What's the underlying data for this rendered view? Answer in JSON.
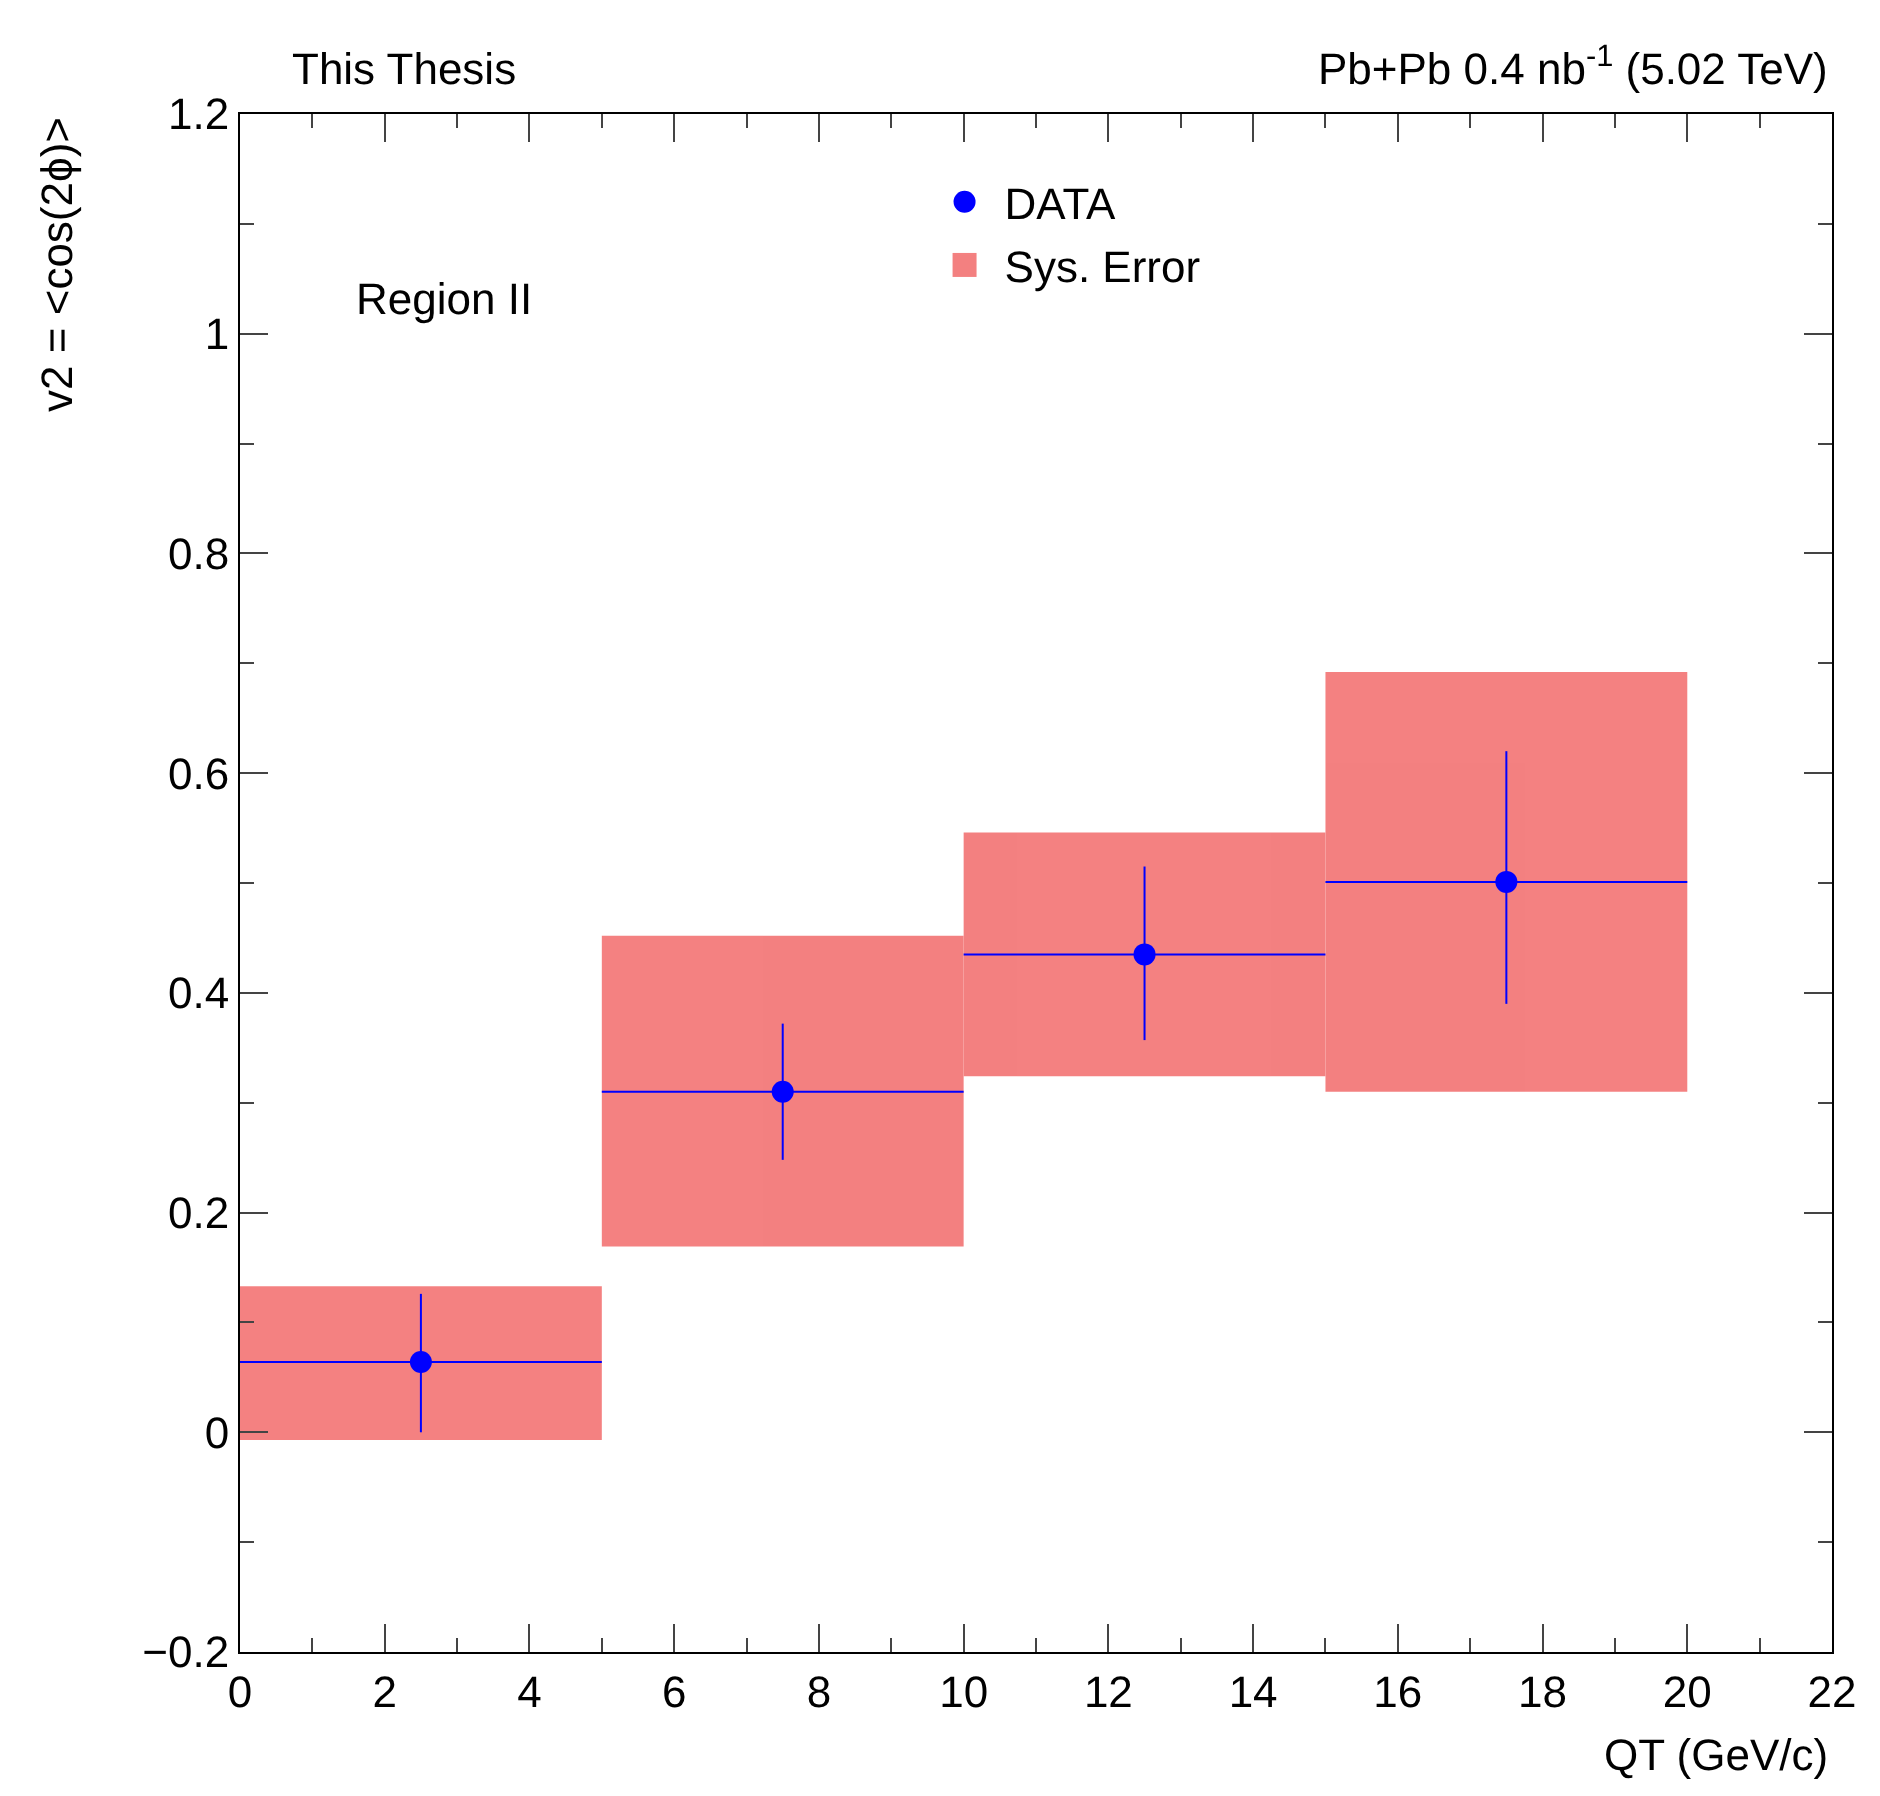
{
  "chart_data": {
    "type": "scatter",
    "xlabel": "QT (GeV/c)",
    "ylabel": "v2 = <cos(2ϕ)>",
    "annotations": [
      "This Thesis",
      "Pb+Pb 0.4 nb$^{-1}$ (5.02 TeV)",
      "Region II"
    ],
    "x": [
      2.5,
      7.5,
      12.5,
      17.5
    ],
    "series": [
      {
        "name": "Sys. Error",
        "type": "bar",
        "color": "#f26b6b",
        "base": [
          -0.007,
          0.169,
          0.324,
          0.31
        ],
        "values": [
          0.14,
          0.283,
          0.222,
          0.382
        ]
      },
      {
        "name": "DATA",
        "color": "#0000ff",
        "values": [
          0.064,
          0.31,
          0.435,
          0.501
        ],
        "errors": [
          [
            0.0,
            0.126
          ],
          [
            0.248,
            0.372
          ],
          [
            0.357,
            0.515
          ],
          [
            0.39,
            0.62
          ]
        ],
        "xerrors": [
          2.5,
          2.5,
          2.5,
          2.5
        ]
      }
    ],
    "marker": "circle",
    "xlim": [
      0,
      22
    ],
    "xticks": [
      0,
      2,
      4,
      6,
      8,
      10,
      12,
      14,
      16,
      18,
      20,
      22
    ],
    "ylim": [
      -0.2,
      1.2
    ],
    "yticks": [
      {
        "value": -0.2,
        "label": "−0.2"
      },
      0,
      0.2,
      0.4,
      0.6,
      0.8,
      1,
      1.2
    ],
    "legend": "top"
  }
}
